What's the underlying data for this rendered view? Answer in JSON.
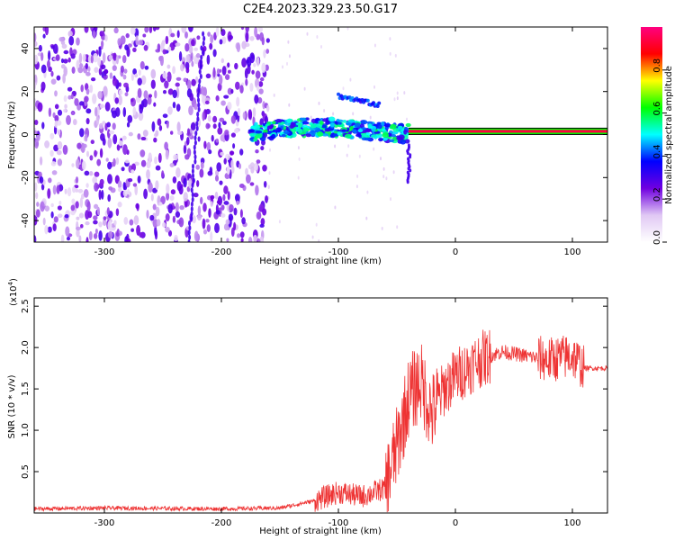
{
  "chart_data": [
    {
      "type": "heatmap",
      "title": "C2E4.2023.329.23.50.G17",
      "xlabel": "Height of straight line (km)",
      "ylabel": "Frequency (Hz)",
      "xlim": [
        -360,
        130
      ],
      "ylim": [
        -50,
        50
      ],
      "x_ticks": [
        -300,
        -200,
        -100,
        0,
        100
      ],
      "x_tick_labels": [
        "-300",
        "-200",
        "-100",
        "0",
        "100"
      ],
      "y_ticks": [
        -40,
        -20,
        0,
        20,
        40
      ],
      "y_tick_labels": [
        "-40",
        "-20",
        "0",
        "20",
        "40"
      ],
      "colorbar": {
        "label": "Normalized spectral amplitude",
        "range": [
          0.0,
          1.0
        ],
        "ticks": [
          0.0,
          0.2,
          0.4,
          0.6,
          0.8
        ],
        "tick_labels": [
          "0.0",
          "0.2",
          "0.4",
          "0.6",
          "0.8"
        ],
        "colormap": [
          "#ffffff",
          "#e0c8f4",
          "#7000e0",
          "#0000ff",
          "#00ffff",
          "#00ff00",
          "#ffff00",
          "#ff0000",
          "#ff0080"
        ]
      },
      "features": [
        {
          "name": "carrier line",
          "x_range": [
            -40,
            130
          ],
          "freq_hz": 1.5,
          "amplitude": 0.95
        },
        {
          "name": "ionospheric band",
          "x_range": [
            -175,
            -40
          ],
          "freq_center_hz": 1,
          "freq_halfwidth_hz": 5,
          "amplitude": 0.5
        },
        {
          "name": "diffuse noise",
          "x_range": [
            -360,
            -160
          ],
          "freq_range": [
            -50,
            50
          ],
          "amplitude": 0.2
        }
      ],
      "grid": false
    },
    {
      "type": "line",
      "xlabel": "Height of straight line (km)",
      "ylabel": "SNR (10 * v/v)",
      "y_multiplier_label": "(x10",
      "y_multiplier_exp": "4",
      "y_multiplier_close": ")",
      "xlim": [
        -360,
        130
      ],
      "ylim": [
        0,
        26000
      ],
      "x_ticks": [
        -300,
        -200,
        -100,
        0,
        100
      ],
      "x_tick_labels": [
        "-300",
        "-200",
        "-100",
        "0",
        "100"
      ],
      "y_ticks": [
        5000,
        10000,
        15000,
        20000,
        25000
      ],
      "y_tick_labels": [
        "0.5",
        "1.0",
        "1.5",
        "2.0",
        "2.5"
      ],
      "line_color": "#ee3333",
      "envelope_x": [
        -360,
        -300,
        -200,
        -150,
        -120,
        -100,
        -80,
        -60,
        -50,
        -40,
        -30,
        -20,
        -10,
        0,
        20,
        40,
        60,
        80,
        100,
        110,
        130
      ],
      "envelope_y": [
        500,
        600,
        500,
        600,
        1500,
        2500,
        2000,
        3000,
        8000,
        14000,
        16000,
        12000,
        15000,
        16500,
        18500,
        19500,
        19000,
        18500,
        19000,
        17500,
        17500
      ],
      "grid": false
    }
  ]
}
